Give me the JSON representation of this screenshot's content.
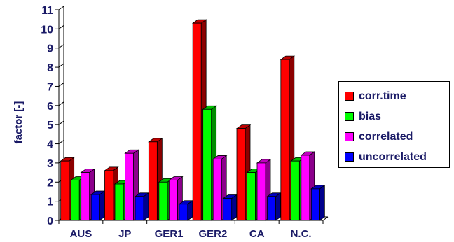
{
  "chart_data": {
    "type": "bar",
    "ylabel": "factor [-]",
    "ylim": [
      0,
      11
    ],
    "yticks": [
      "0",
      "1",
      "2",
      "3",
      "4",
      "5",
      "6",
      "7",
      "8",
      "9",
      "10",
      "11"
    ],
    "categories": [
      "AUS",
      "JP",
      "GER1",
      "GER2",
      "CA",
      "N.C."
    ],
    "series": [
      {
        "name": "corr.time",
        "color": "#ff0000",
        "values": [
          3.1,
          2.6,
          4.1,
          10.3,
          4.8,
          8.4
        ]
      },
      {
        "name": "bias",
        "color": "#00ff00",
        "values": [
          2.1,
          1.9,
          2.0,
          5.8,
          2.5,
          3.1
        ]
      },
      {
        "name": "correlated",
        "color": "#ff00ff",
        "values": [
          2.5,
          3.5,
          2.1,
          3.2,
          3.0,
          3.4
        ]
      },
      {
        "name": "uncorrelated",
        "color": "#0000ff",
        "values": [
          1.35,
          1.25,
          0.85,
          1.15,
          1.25,
          1.65
        ]
      }
    ],
    "legend_position": "right",
    "grid": false,
    "bar_style": "3d"
  }
}
